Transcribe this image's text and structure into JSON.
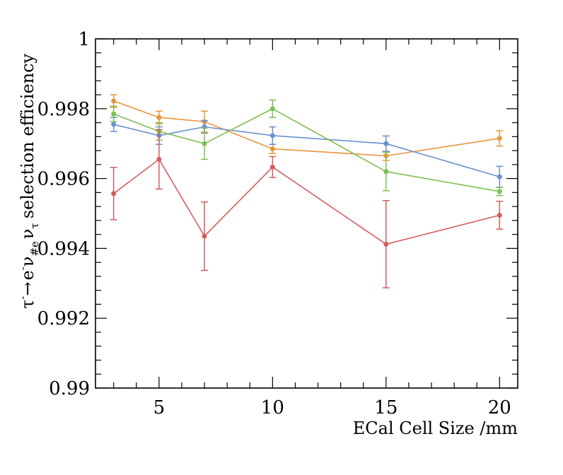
{
  "chart_data": {
    "type": "line",
    "title": "",
    "xlabel": "ECal Cell Size /mm",
    "ylabel": {
      "prefix": "τ",
      "prefix_sup": "-",
      "arrow": "→",
      "e": "e",
      "e_sup": "-",
      "nu": "ν",
      "nu_e_sub": "#e",
      "nu_tau": "ν",
      "nu_tau_sub": "τ",
      "suffix": "selection efficiency"
    },
    "xlim": [
      2.2,
      20.8
    ],
    "ylim": [
      0.99,
      1.0
    ],
    "xticks": [
      5,
      10,
      15,
      20
    ],
    "xtick_labels": [
      "5",
      "10",
      "15",
      "20"
    ],
    "yticks": [
      0.99,
      0.992,
      0.994,
      0.996,
      0.998,
      1.0
    ],
    "ytick_labels": [
      "0.99",
      "0.992",
      "0.994",
      "0.996",
      "0.998",
      "1"
    ],
    "x": [
      3,
      5,
      7,
      10,
      15,
      20
    ],
    "series": [
      {
        "name": "orange",
        "color": "#e8963c",
        "values": [
          0.99822,
          0.99775,
          0.99763,
          0.99685,
          0.99665,
          0.99715
        ],
        "errors": [
          0.00018,
          0.00018,
          0.0003,
          0.00013,
          0.00013,
          0.00022
        ]
      },
      {
        "name": "blue",
        "color": "#6a8fd0",
        "values": [
          0.99755,
          0.99723,
          0.99748,
          0.99723,
          0.997,
          0.99605
        ],
        "errors": [
          0.0002,
          0.00025,
          0.00018,
          0.00025,
          0.00022,
          0.0003
        ]
      },
      {
        "name": "green",
        "color": "#7dc052",
        "values": [
          0.99785,
          0.99735,
          0.997,
          0.998,
          0.9962,
          0.99563
        ],
        "errors": [
          0.00022,
          0.00025,
          0.00045,
          0.00025,
          0.00055,
          0.00012
        ]
      },
      {
        "name": "red",
        "color": "#d65c60",
        "values": [
          0.99557,
          0.99655,
          0.99435,
          0.99633,
          0.99412,
          0.99495
        ],
        "errors": [
          0.00075,
          0.00085,
          0.00098,
          0.0003,
          0.00125,
          0.0004
        ]
      }
    ]
  }
}
